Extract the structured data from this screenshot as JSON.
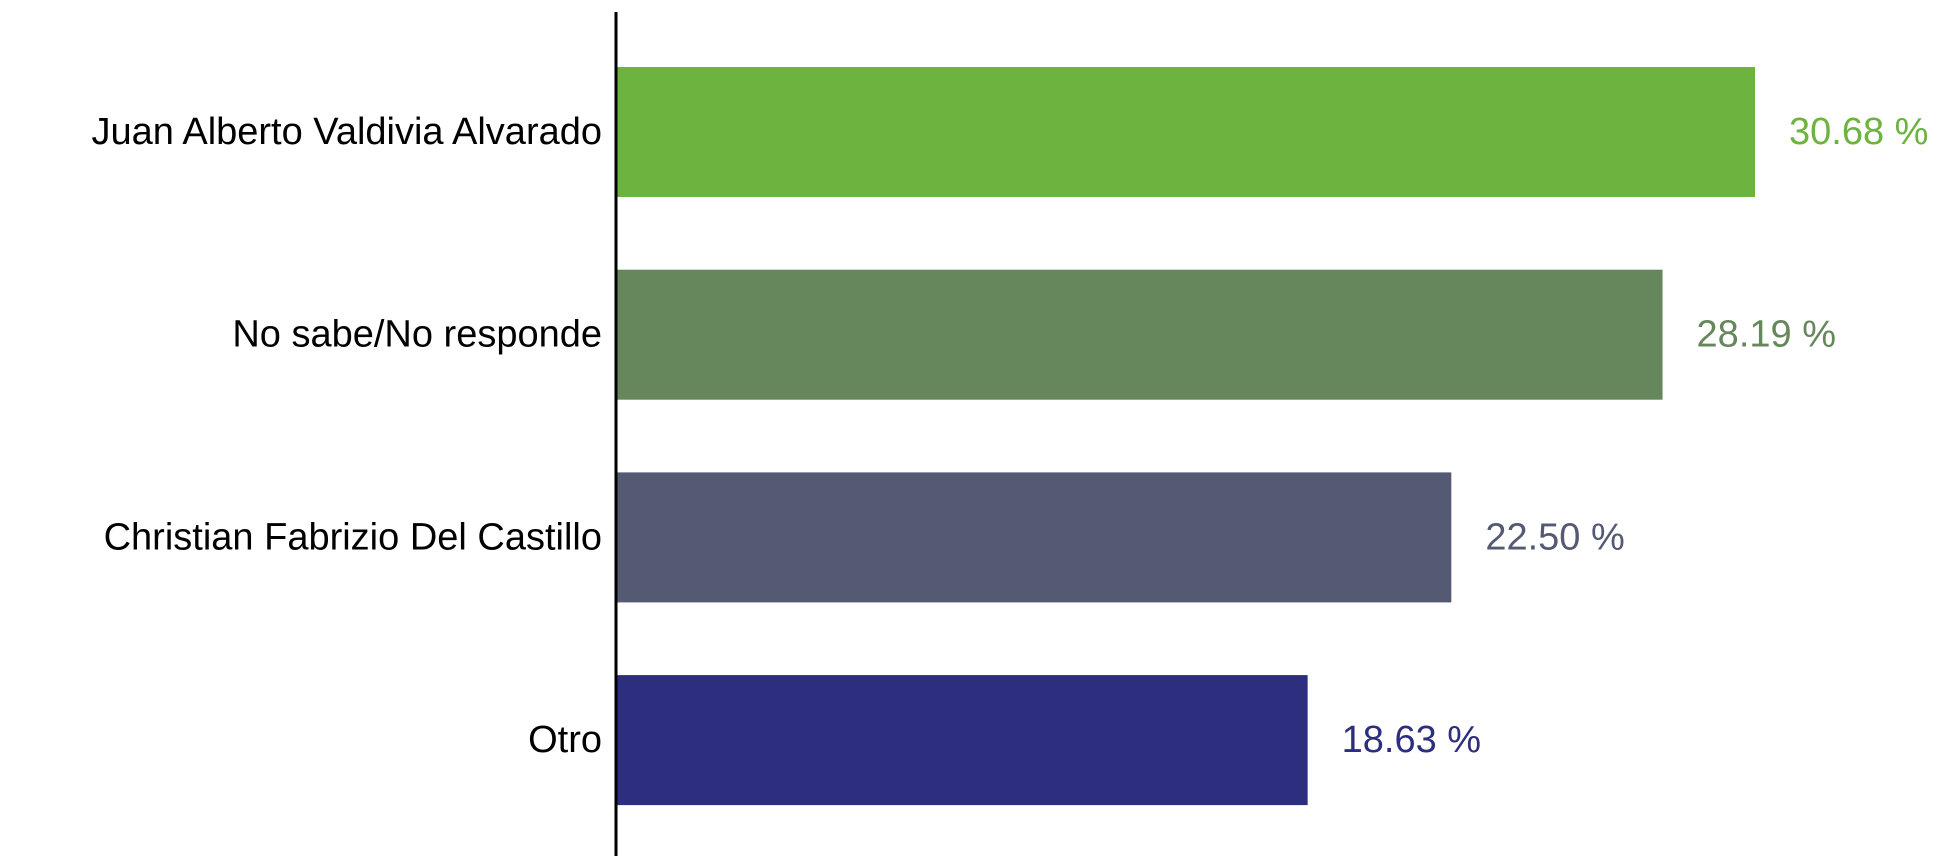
{
  "chart_data": {
    "type": "bar",
    "orientation": "horizontal",
    "categories": [
      "Juan Alberto Valdivia Alvarado",
      "No sabe/No responde",
      "Christian Fabrizio Del Castillo",
      "Otro"
    ],
    "values": [
      30.68,
      28.19,
      22.5,
      18.63
    ],
    "value_labels": [
      "30.68 %",
      "28.19 %",
      "22.50 %",
      "18.63 %"
    ],
    "colors": [
      "#6db33f",
      "#66875c",
      "#545a72",
      "#2e2e7e"
    ],
    "title": "",
    "xlabel": "",
    "ylabel": "",
    "xlim": [
      0,
      30.68
    ],
    "grid": false,
    "legend": "none"
  }
}
